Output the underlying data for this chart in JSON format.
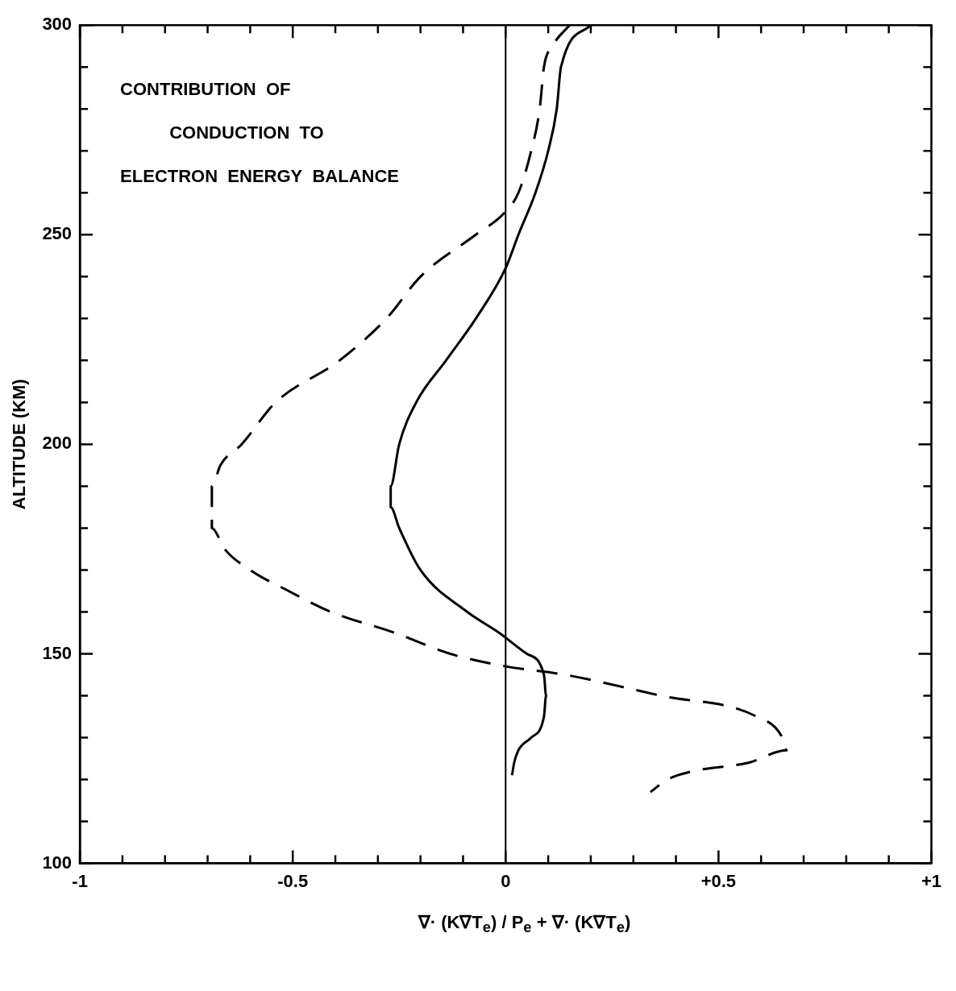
{
  "chart_data": {
    "type": "line",
    "title": "CONTRIBUTION  OF\n          CONDUCTION  TO\nELECTRON  ENERGY  BALANCE",
    "xlabel": "∇· (K∇T$_{e}$) / P$_{e}$ + ∇· (K∇T$_{e}$)",
    "ylabel": "ALTITUDE (KM)",
    "xlim": [
      -1,
      1
    ],
    "ylim": [
      100,
      300
    ],
    "xticks": [
      {
        "value": -1,
        "label": "-1"
      },
      {
        "value": -0.9,
        "label": null
      },
      {
        "value": -0.8,
        "label": null
      },
      {
        "value": -0.7,
        "label": null
      },
      {
        "value": -0.6,
        "label": null
      },
      {
        "value": -0.5,
        "label": "-0.5"
      },
      {
        "value": -0.4,
        "label": null
      },
      {
        "value": -0.3,
        "label": null
      },
      {
        "value": -0.2,
        "label": null
      },
      {
        "value": -0.1,
        "label": null
      },
      {
        "value": 0,
        "label": "0"
      },
      {
        "value": 0.1,
        "label": null
      },
      {
        "value": 0.2,
        "label": null
      },
      {
        "value": 0.3,
        "label": null
      },
      {
        "value": 0.4,
        "label": null
      },
      {
        "value": 0.5,
        "label": "+0.5"
      },
      {
        "value": 0.6,
        "label": null
      },
      {
        "value": 0.7,
        "label": null
      },
      {
        "value": 0.8,
        "label": null
      },
      {
        "value": 0.9,
        "label": null
      },
      {
        "value": 1,
        "label": "+1"
      }
    ],
    "yticks": [
      100,
      {
        "value": 110,
        "label": null
      },
      {
        "value": 120,
        "label": null
      },
      {
        "value": 130,
        "label": null
      },
      {
        "value": 140,
        "label": null
      },
      150,
      {
        "value": 160,
        "label": null
      },
      {
        "value": 170,
        "label": null
      },
      {
        "value": 180,
        "label": null
      },
      {
        "value": 190,
        "label": null
      },
      200,
      {
        "value": 210,
        "label": null
      },
      {
        "value": 220,
        "label": null
      },
      {
        "value": 230,
        "label": null
      },
      {
        "value": 240,
        "label": null
      },
      250,
      {
        "value": 260,
        "label": null
      },
      {
        "value": 270,
        "label": null
      },
      {
        "value": 280,
        "label": null
      },
      {
        "value": 290,
        "label": null
      },
      300
    ],
    "grid": false,
    "legend": false,
    "marker": "none",
    "ref_lines": [
      {
        "axis": "x",
        "value": 0,
        "color": "#000000",
        "line_style": "solid"
      }
    ],
    "series": [
      {
        "color": "#000000",
        "line_style": "solid",
        "x": [
          0.2,
          0.13,
          0.12,
          0.1,
          0.07,
          0.03,
          0.0,
          -0.07,
          -0.14,
          -0.21,
          -0.25,
          -0.27,
          -0.27,
          -0.25,
          -0.2,
          -0.09,
          -0.015,
          0.05,
          0.09,
          0.095,
          0.09,
          0.06,
          0.03,
          0.02,
          0.015
        ],
        "values": [
          300,
          290,
          280,
          270,
          260,
          250,
          242,
          230,
          220,
          210,
          200,
          190,
          185,
          180,
          170,
          160,
          155,
          150,
          145,
          140,
          135,
          130,
          127,
          124,
          121
        ]
      },
      {
        "color": "#000000",
        "line_style": "dashed",
        "x": [
          0.15,
          0.11,
          0.09,
          0.08,
          0.06,
          0.03,
          -0.005,
          -0.07,
          -0.2,
          -0.28,
          -0.39,
          -0.54,
          -0.62,
          -0.67,
          -0.69,
          -0.69,
          -0.69,
          -0.66,
          -0.6,
          -0.51,
          -0.41,
          -0.26,
          -0.13,
          0.0,
          0.14,
          0.365,
          0.59,
          0.65,
          0.66,
          0.57,
          0.44,
          0.38,
          0.34
        ],
        "values": [
          300,
          295,
          290,
          280,
          270,
          260,
          255,
          250,
          240,
          230,
          220,
          210,
          200,
          195,
          190,
          185,
          180,
          175,
          170,
          165,
          160,
          155,
          150,
          147,
          145,
          140,
          135,
          130,
          127,
          124,
          122,
          120,
          117
        ]
      }
    ]
  }
}
